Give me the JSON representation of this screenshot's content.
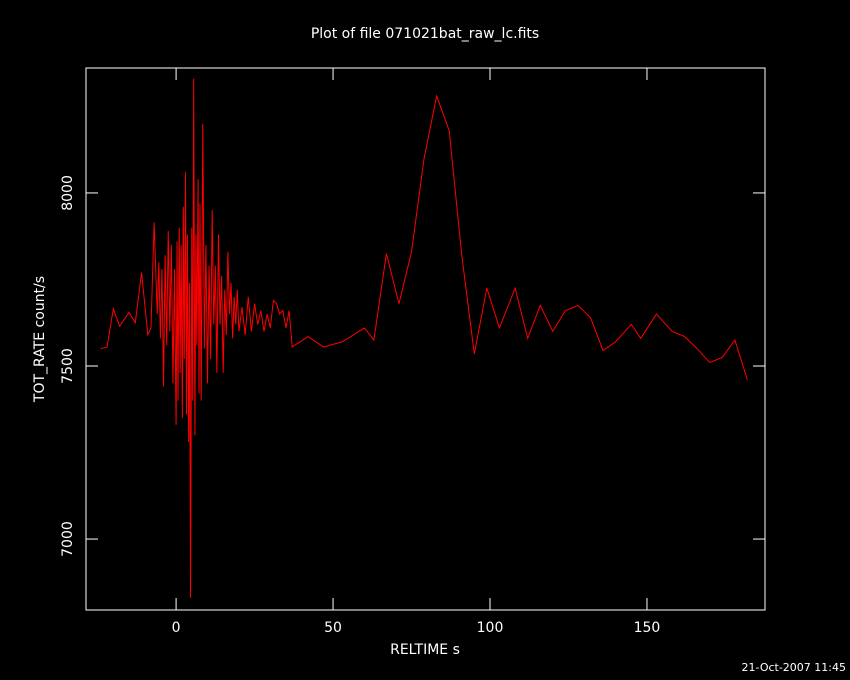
{
  "chart_data": {
    "type": "line",
    "title": "Plot of file 071021bat_raw_lc.fits",
    "xlabel": "RELTIME  s",
    "ylabel": "TOT_RATE  count/s",
    "footer": "21-Oct-2007 11:45",
    "color": "#ff0000",
    "x": [
      -24,
      -22,
      -20,
      -18,
      -15,
      -13,
      -11,
      -9,
      -8,
      -7,
      -6,
      -5.5,
      -5,
      -4.5,
      -4,
      -3.5,
      -3,
      -2.5,
      -2,
      -1.5,
      -1,
      -0.5,
      0,
      0.3,
      0.6,
      1,
      1.3,
      1.6,
      2,
      2.3,
      2.6,
      3,
      3.3,
      3.6,
      4,
      4.3,
      4.6,
      5,
      5.3,
      5.6,
      6,
      6.3,
      6.6,
      7,
      7.3,
      7.6,
      8,
      8.5,
      9,
      9.5,
      10,
      10.5,
      11,
      11.5,
      12,
      12.5,
      13,
      13.5,
      14,
      14.5,
      15,
      15.5,
      16,
      16.5,
      17,
      17.5,
      18,
      18.5,
      19,
      19.5,
      20,
      21,
      22,
      23,
      24,
      25,
      26,
      27,
      28,
      29,
      30,
      31,
      32,
      33,
      34,
      35,
      36,
      37,
      42,
      47,
      53,
      60,
      63,
      67,
      71,
      75,
      79,
      83,
      87,
      91,
      95,
      99,
      103,
      108,
      112,
      116,
      120,
      124,
      128,
      132,
      136,
      140,
      145,
      148,
      153,
      158,
      162,
      166,
      170,
      174,
      178,
      182
    ],
    "values": [
      7550,
      7555,
      7665,
      7615,
      7655,
      7625,
      7770,
      7590,
      7610,
      7915,
      7650,
      7800,
      7580,
      7780,
      7440,
      7820,
      7560,
      7890,
      7600,
      7850,
      7450,
      7780,
      7330,
      7860,
      7400,
      7900,
      7480,
      7850,
      7350,
      7960,
      7520,
      8060,
      7360,
      7880,
      7280,
      7740,
      6830,
      7900,
      7400,
      8330,
      7300,
      7880,
      7560,
      8040,
      7420,
      7970,
      7400,
      8200,
      7550,
      7850,
      7450,
      7790,
      7520,
      7950,
      7620,
      7790,
      7480,
      7880,
      7620,
      7760,
      7480,
      7720,
      7590,
      7830,
      7650,
      7740,
      7580,
      7700,
      7620,
      7720,
      7600,
      7670,
      7590,
      7700,
      7600,
      7680,
      7620,
      7660,
      7600,
      7650,
      7610,
      7690,
      7680,
      7650,
      7660,
      7610,
      7660,
      7555,
      7585,
      7555,
      7570,
      7610,
      7575,
      7825,
      7680,
      7830,
      8100,
      8280,
      8180,
      7820,
      7535,
      7725,
      7610,
      7725,
      7580,
      7675,
      7600,
      7660,
      7675,
      7640,
      7545,
      7570,
      7620,
      7580,
      7650,
      7600,
      7585,
      7550,
      7510,
      7525,
      7575,
      7460
    ],
    "xlim": [
      -28.7,
      187.6
    ],
    "ylim": [
      6795,
      8361
    ],
    "xticks": [
      0,
      50,
      100,
      150
    ],
    "yticks": [
      7000,
      7500,
      8000
    ]
  }
}
